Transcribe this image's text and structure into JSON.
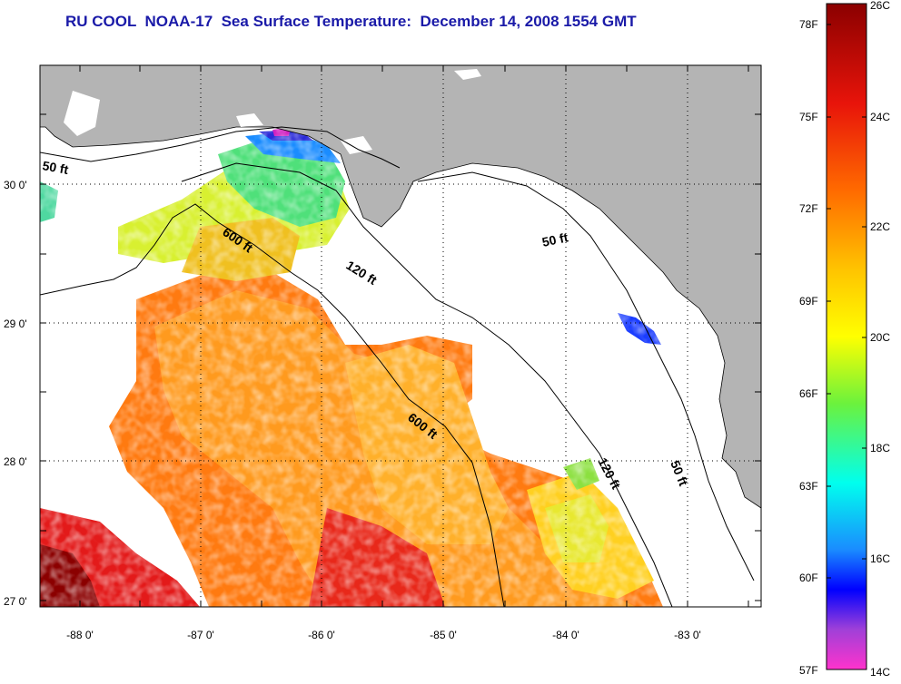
{
  "title": "RU COOL  NOAA-17  Sea Surface Temperature:  December 14, 2008 1554 GMT",
  "colors": {
    "land": "#b4b4b4",
    "ocean_nodata": "#ffffff",
    "title": "#1a1aa8"
  },
  "map": {
    "x_ticks": [
      "-88 0'",
      "-87 0'",
      "-86 0'",
      "-85 0'",
      "-84 0'",
      "-83 0'"
    ],
    "y_ticks": [
      "30 0'",
      "29 0'",
      "28 0'",
      "27 0'"
    ],
    "contour_labels": [
      "50 ft",
      "600 ft",
      "120 ft",
      "50 ft",
      "600 ft",
      "120 ft",
      "50 ft"
    ]
  },
  "colorbar": {
    "fahrenheit_labels": [
      "78F",
      "75F",
      "72F",
      "69F",
      "66F",
      "63F",
      "60F",
      "57F"
    ],
    "celsius_labels": [
      "26C",
      "24C",
      "22C",
      "20C",
      "18C",
      "16C",
      "14C"
    ],
    "min_c": 14,
    "max_c": 26
  }
}
